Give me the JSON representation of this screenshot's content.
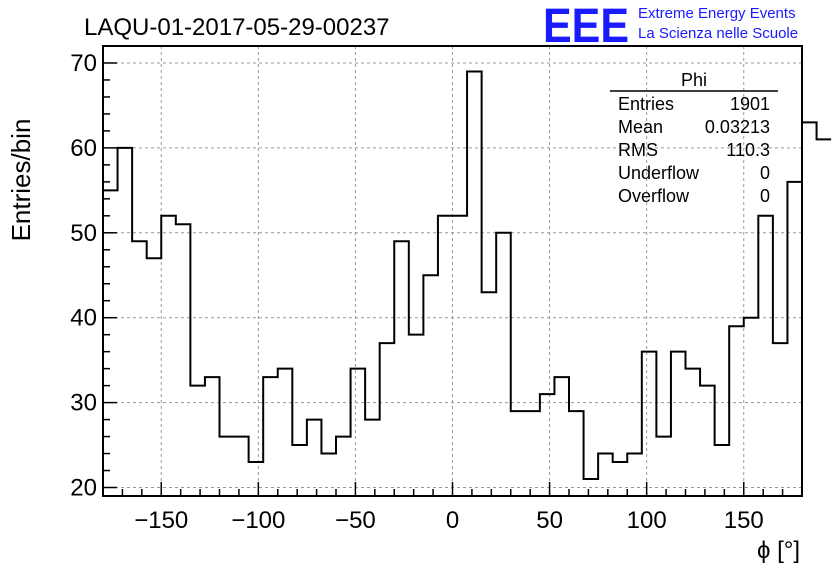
{
  "title": "LAQU-01-2017-05-29-00237",
  "logo": {
    "text": "EEE",
    "line1": "Extreme Energy Events",
    "line2": "La Scienza nelle Scuole",
    "color": "#1a1aff"
  },
  "chart_data": {
    "type": "histogram",
    "title": "LAQU-01-2017-05-29-00237",
    "xlabel": "ϕ [°]",
    "ylabel": "Entries/bin",
    "xlim": [
      -180,
      180
    ],
    "ylim": [
      19,
      72
    ],
    "xticks": [
      -150,
      -100,
      -50,
      0,
      50,
      100,
      150
    ],
    "xtick_labels": [
      "−150",
      "−100",
      "−50",
      "0",
      "50",
      "100",
      "150"
    ],
    "yticks": [
      20,
      30,
      40,
      50,
      60,
      70
    ],
    "grid": true,
    "bin_width": 7.5,
    "bin_start": -180,
    "values": [
      55,
      60,
      49,
      47,
      52,
      51,
      32,
      33,
      26,
      26,
      23,
      33,
      34,
      25,
      28,
      24,
      26,
      34,
      28,
      37,
      49,
      38,
      45,
      52,
      52,
      69,
      43,
      50,
      29,
      29,
      31,
      33,
      29,
      21,
      24,
      23,
      24,
      36,
      26,
      36,
      34,
      32,
      25,
      39,
      40,
      52,
      37,
      56,
      63,
      61
    ],
    "stats": {
      "name": "Phi",
      "rows": [
        {
          "label": "Entries",
          "value": "1901"
        },
        {
          "label": "Mean",
          "value": "0.03213"
        },
        {
          "label": "RMS",
          "value": "110.3"
        },
        {
          "label": "Underflow",
          "value": "0"
        },
        {
          "label": "Overflow",
          "value": "0"
        }
      ]
    }
  }
}
